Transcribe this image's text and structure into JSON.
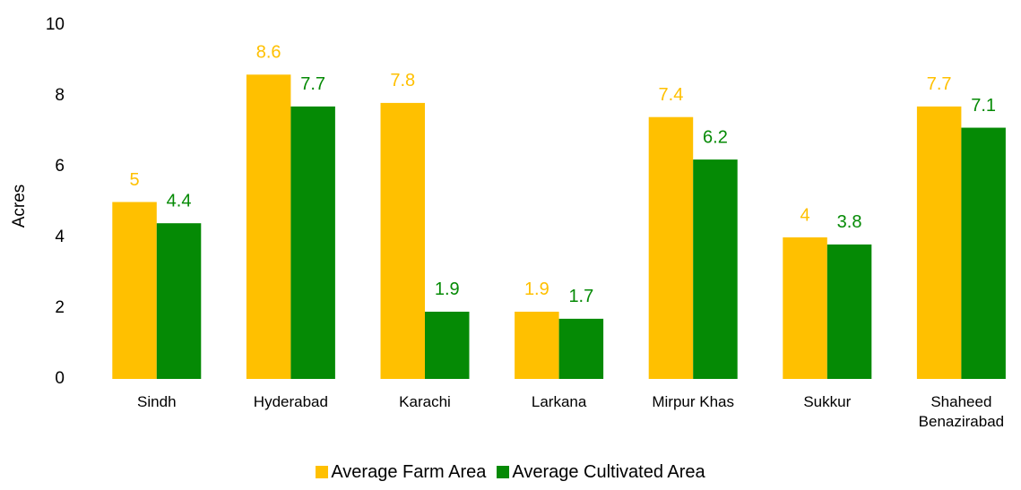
{
  "chart_data": {
    "type": "bar",
    "ylabel": "Acres",
    "categories": [
      "Sindh",
      "Hyderabad",
      "Karachi",
      "Larkana",
      "Mirpur Khas",
      "Sukkur",
      "Shaheed Benazirabad"
    ],
    "series": [
      {
        "name": "Average Farm Area",
        "color": "#ffc000",
        "values": [
          5,
          8.6,
          7.8,
          1.9,
          7.4,
          4,
          7.7
        ]
      },
      {
        "name": "Average Cultivated Area",
        "color": "#058a05",
        "values": [
          4.4,
          7.7,
          1.9,
          1.7,
          6.2,
          3.8,
          7.1
        ]
      }
    ],
    "ylim": [
      0,
      10
    ],
    "yticks": [
      0,
      2,
      4,
      6,
      8,
      10
    ],
    "grid": false,
    "legend": "bottom"
  }
}
